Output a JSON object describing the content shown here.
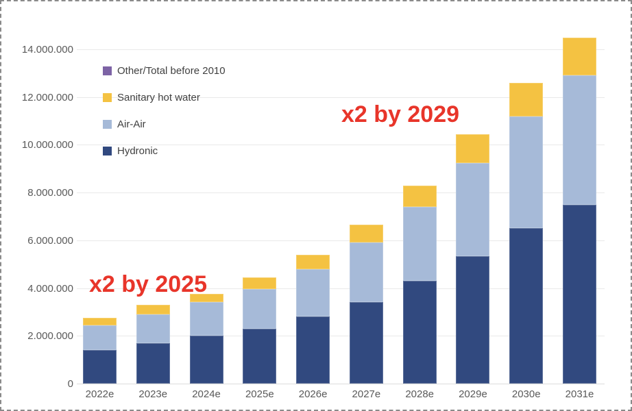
{
  "chart_data": {
    "type": "bar",
    "stacked": true,
    "title": "",
    "xlabel": "",
    "ylabel": "",
    "ylim": [
      0,
      14000000
    ],
    "grid": "horizontal",
    "legend_position": "inside-top-left",
    "categories": [
      "2022e",
      "2023e",
      "2024e",
      "2025e",
      "2026e",
      "2027e",
      "2028e",
      "2029e",
      "2030e",
      "2031e"
    ],
    "series": [
      {
        "name": "Hydronic",
        "color": "#31497f",
        "values": [
          1400000,
          1700000,
          2000000,
          2300000,
          2800000,
          3400000,
          4300000,
          5350000,
          6500000,
          7500000
        ]
      },
      {
        "name": "Air-Air",
        "color": "#a6bad8",
        "values": [
          1050000,
          1200000,
          1400000,
          1650000,
          2000000,
          2500000,
          3100000,
          3900000,
          4700000,
          5400000
        ]
      },
      {
        "name": "Sanitary hot water",
        "color": "#f4c242",
        "values": [
          300000,
          400000,
          350000,
          500000,
          600000,
          750000,
          900000,
          1200000,
          1400000,
          1600000
        ]
      },
      {
        "name": "Other/Total before 2010",
        "color": "#7d63a5",
        "values": [
          0,
          0,
          0,
          0,
          0,
          0,
          0,
          0,
          0,
          0
        ]
      }
    ],
    "totals": [
      2750000,
      3300000,
      3750000,
      4450000,
      5400000,
      6650000,
      8300000,
      10450000,
      12600000,
      14500000
    ],
    "y_ticks": {
      "values": [
        0,
        2000000,
        4000000,
        6000000,
        8000000,
        10000000,
        12000000,
        14000000
      ],
      "labels": [
        "0",
        "2.000.000",
        "4.000.000",
        "6.000.000",
        "8.000.000",
        "10.000.000",
        "12.000.000",
        "14.000.000"
      ]
    },
    "legend": [
      {
        "label": "Other/Total before 2010",
        "color": "#7d63a5"
      },
      {
        "label": "Sanitary hot water",
        "color": "#f4c242"
      },
      {
        "label": "Air-Air",
        "color": "#a6bad8"
      },
      {
        "label": "Hydronic",
        "color": "#31497f"
      }
    ],
    "annotations": [
      {
        "text": "x2 by 2025",
        "color": "#e8352a"
      },
      {
        "text": "x2 by 2029",
        "color": "#e8352a"
      }
    ]
  },
  "colors": {
    "axis_text": "#595959",
    "legend_text": "#404040",
    "gridline": "#e9e9e9",
    "frame_border": "#8a8a8a",
    "annotation_red": "#e8352a"
  }
}
